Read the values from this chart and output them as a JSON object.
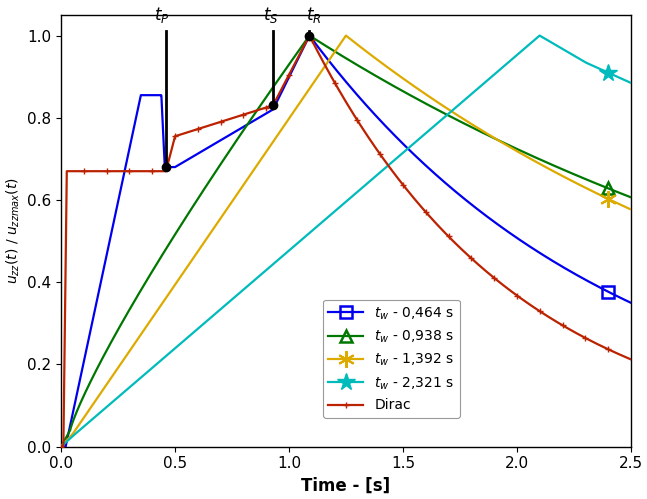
{
  "xlabel": "Time - [s]",
  "ylabel": "u_zz(t) / u_zzmax(t)",
  "xlim": [
    0,
    2.5
  ],
  "ylim": [
    0,
    1.05
  ],
  "yticks": [
    0,
    0.2,
    0.4,
    0.6,
    0.8,
    1.0
  ],
  "xticks": [
    0,
    0.5,
    1.0,
    1.5,
    2.0,
    2.5
  ],
  "colors": {
    "blue": "#0000EE",
    "green": "#007700",
    "yellow": "#DDAA00",
    "cyan": "#00BBBB",
    "red": "#BB2200"
  },
  "tp": 0.46,
  "ts": 0.93,
  "tr": 1.09,
  "lw": 1.6,
  "background_color": "#ffffff"
}
